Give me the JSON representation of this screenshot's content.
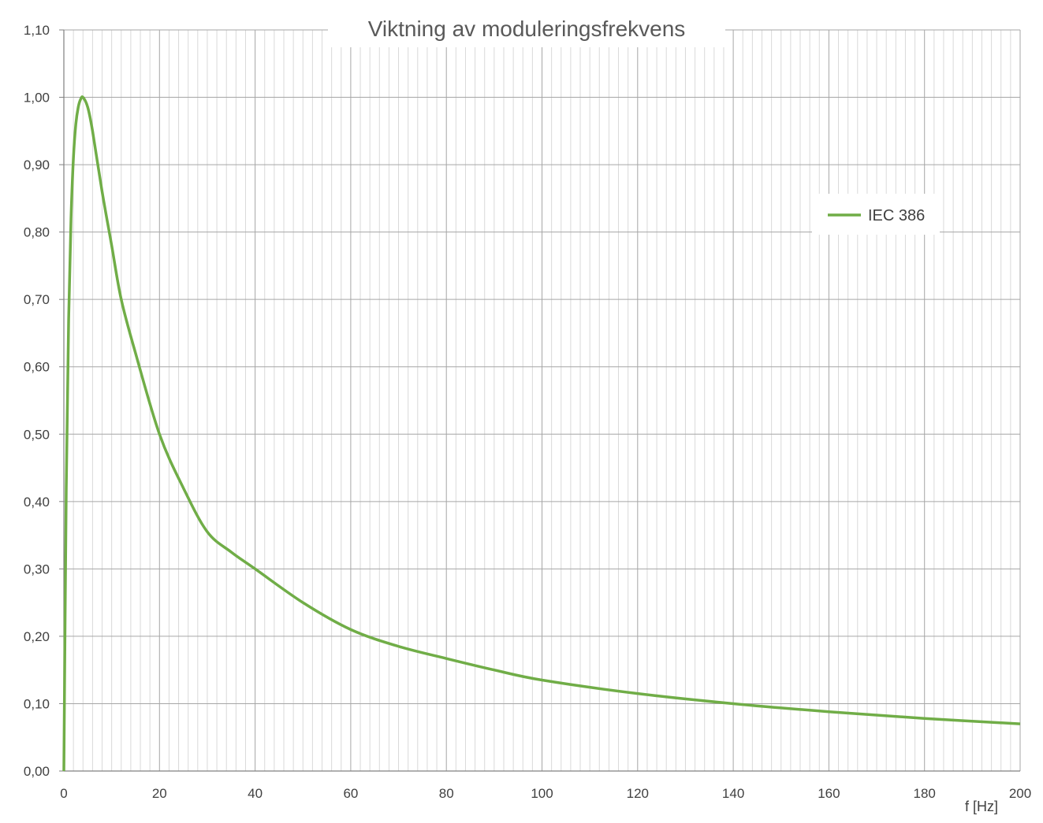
{
  "chart_data": {
    "type": "line",
    "title": "Viktning av moduleringsfrekvens",
    "xlabel": "f [Hz]",
    "ylabel": "",
    "xlim": [
      0,
      200
    ],
    "ylim": [
      0,
      1.1
    ],
    "x_ticks": [
      "0",
      "20",
      "40",
      "60",
      "80",
      "100",
      "120",
      "140",
      "160",
      "180",
      "200"
    ],
    "y_ticks": [
      "0,00",
      "0,10",
      "0,20",
      "0,30",
      "0,40",
      "0,50",
      "0,60",
      "0,70",
      "0,80",
      "0,90",
      "1,00",
      "1,10"
    ],
    "grid": true,
    "legend_position": "top-right",
    "series": [
      {
        "name": "IEC 386",
        "color": "#70ad47",
        "x": [
          0,
          0.5,
          1,
          1.5,
          2,
          2.5,
          3,
          3.5,
          4,
          5,
          6,
          8,
          10,
          12,
          15,
          20,
          25,
          30,
          35,
          40,
          50,
          60,
          70,
          80,
          90,
          100,
          120,
          140,
          160,
          180,
          200
        ],
        "y": [
          0,
          0.42,
          0.67,
          0.82,
          0.91,
          0.96,
          0.985,
          0.997,
          1.0,
          0.985,
          0.95,
          0.86,
          0.78,
          0.7,
          0.62,
          0.5,
          0.42,
          0.355,
          0.325,
          0.3,
          0.25,
          0.21,
          0.185,
          0.167,
          0.15,
          0.135,
          0.115,
          0.1,
          0.088,
          0.078,
          0.07
        ]
      }
    ]
  }
}
